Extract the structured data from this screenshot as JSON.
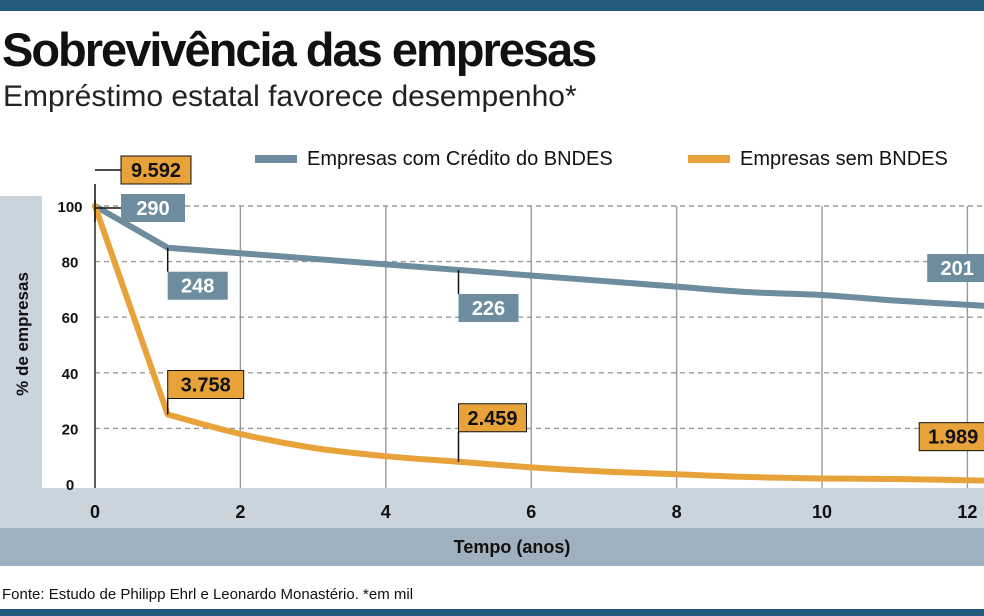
{
  "title": "Sobrevivência das empresas",
  "subtitle": "Empréstimo estatal favorece desempenho*",
  "source": "Fonte: Estudo de Philipp Ehrl e Leonardo Monastério. *em mil",
  "colors": {
    "bar": "#245a7c",
    "grey_line": "#6d8c9d",
    "orange_line": "#e8a23a",
    "axis_band": "#c9d4dc",
    "xlabel_band": "#9fb1be"
  },
  "chart_data": {
    "type": "line",
    "xlabel": "Tempo (anos)",
    "ylabel": "% de empresas",
    "xlim": [
      0,
      12.3
    ],
    "ylim": [
      0,
      100
    ],
    "x_ticks": [
      0,
      2,
      4,
      6,
      8,
      10,
      12
    ],
    "y_ticks": [
      0,
      20,
      40,
      60,
      80,
      100
    ],
    "grid": true,
    "legend_position": "top-right",
    "series": [
      {
        "name": "Empresas com Crédito do BNDES",
        "color": "#6d8c9d",
        "x": [
          0,
          1,
          2,
          3,
          4,
          5,
          6,
          7,
          8,
          9,
          10,
          11,
          12.3
        ],
        "y": [
          100,
          85,
          83,
          81,
          79,
          77,
          75,
          73,
          71,
          69,
          68,
          66,
          64
        ]
      },
      {
        "name": "Empresas sem BNDES",
        "color": "#e8a23a",
        "x": [
          0,
          1,
          2,
          3,
          4,
          5,
          6,
          7,
          8,
          9,
          10,
          11,
          12.3
        ],
        "y": [
          100,
          25,
          18,
          13,
          10,
          8,
          6,
          4.5,
          3.5,
          2.5,
          2,
          1.8,
          1.2
        ]
      }
    ],
    "annotations": [
      {
        "series": 0,
        "x": 0,
        "y": 100,
        "label": "290"
      },
      {
        "series": 0,
        "x": 1,
        "y": 85,
        "label": "248"
      },
      {
        "series": 0,
        "x": 5,
        "y": 77,
        "label": "226"
      },
      {
        "series": 0,
        "x": 12.3,
        "y": 64,
        "label": "201"
      },
      {
        "series": 1,
        "x": 0,
        "y": 100,
        "label": "9.592"
      },
      {
        "series": 1,
        "x": 1,
        "y": 25,
        "label": "3.758"
      },
      {
        "series": 1,
        "x": 5,
        "y": 8,
        "label": "2.459"
      },
      {
        "series": 1,
        "x": 12.3,
        "y": 1.2,
        "label": "1.989"
      }
    ]
  }
}
